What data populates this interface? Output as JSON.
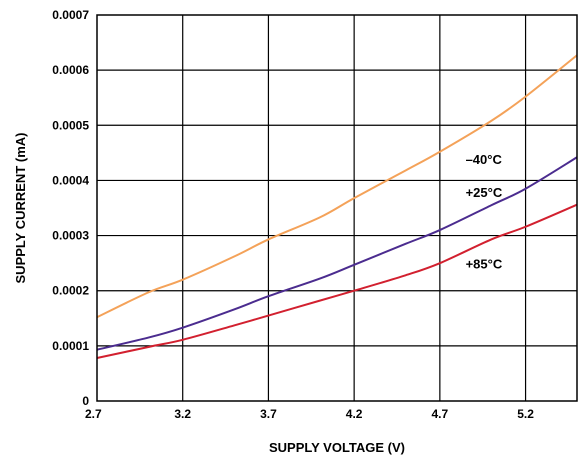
{
  "chart_data": {
    "type": "line",
    "title": "",
    "xlabel": "SUPPLY VOLTAGE (V)",
    "ylabel": "SUPPLY CURRENT (mA)",
    "xlim": [
      2.7,
      5.5
    ],
    "ylim": [
      0,
      0.0007
    ],
    "x_ticks": [
      "2.7",
      "3.2",
      "3.7",
      "4.2",
      "4.7",
      "5.2"
    ],
    "y_ticks": [
      "0",
      "0.0001",
      "0.0002",
      "0.0003",
      "0.0004",
      "0.0005",
      "0.0006",
      "0.0007"
    ],
    "grid": true,
    "series": [
      {
        "name": "–40°C",
        "color": "#f4a259",
        "x": [
          2.7,
          3.0,
          3.2,
          3.5,
          3.7,
          4.0,
          4.2,
          4.5,
          4.7,
          5.0,
          5.2,
          5.5
        ],
        "y": [
          0.000152,
          0.000197,
          0.00022,
          0.000262,
          0.000293,
          0.000333,
          0.000368,
          0.000418,
          0.000452,
          0.000508,
          0.000552,
          0.000627
        ]
      },
      {
        "name": "+25°C",
        "color": "#4b2c8f",
        "x": [
          2.7,
          3.0,
          3.2,
          3.5,
          3.7,
          4.0,
          4.2,
          4.5,
          4.7,
          5.0,
          5.2,
          5.5
        ],
        "y": [
          9.3e-05,
          0.000115,
          0.000133,
          0.000166,
          0.00019,
          0.000222,
          0.000247,
          0.000285,
          0.00031,
          0.000355,
          0.000385,
          0.000442
        ]
      },
      {
        "name": "+85°C",
        "color": "#d2202f",
        "x": [
          2.7,
          3.0,
          3.2,
          3.5,
          3.7,
          4.0,
          4.2,
          4.5,
          4.7,
          5.0,
          5.2,
          5.5
        ],
        "y": [
          7.8e-05,
          9.8e-05,
          0.000111,
          0.000137,
          0.000155,
          0.000182,
          0.0002,
          0.000228,
          0.00025,
          0.000293,
          0.000316,
          0.000356
        ]
      }
    ]
  }
}
